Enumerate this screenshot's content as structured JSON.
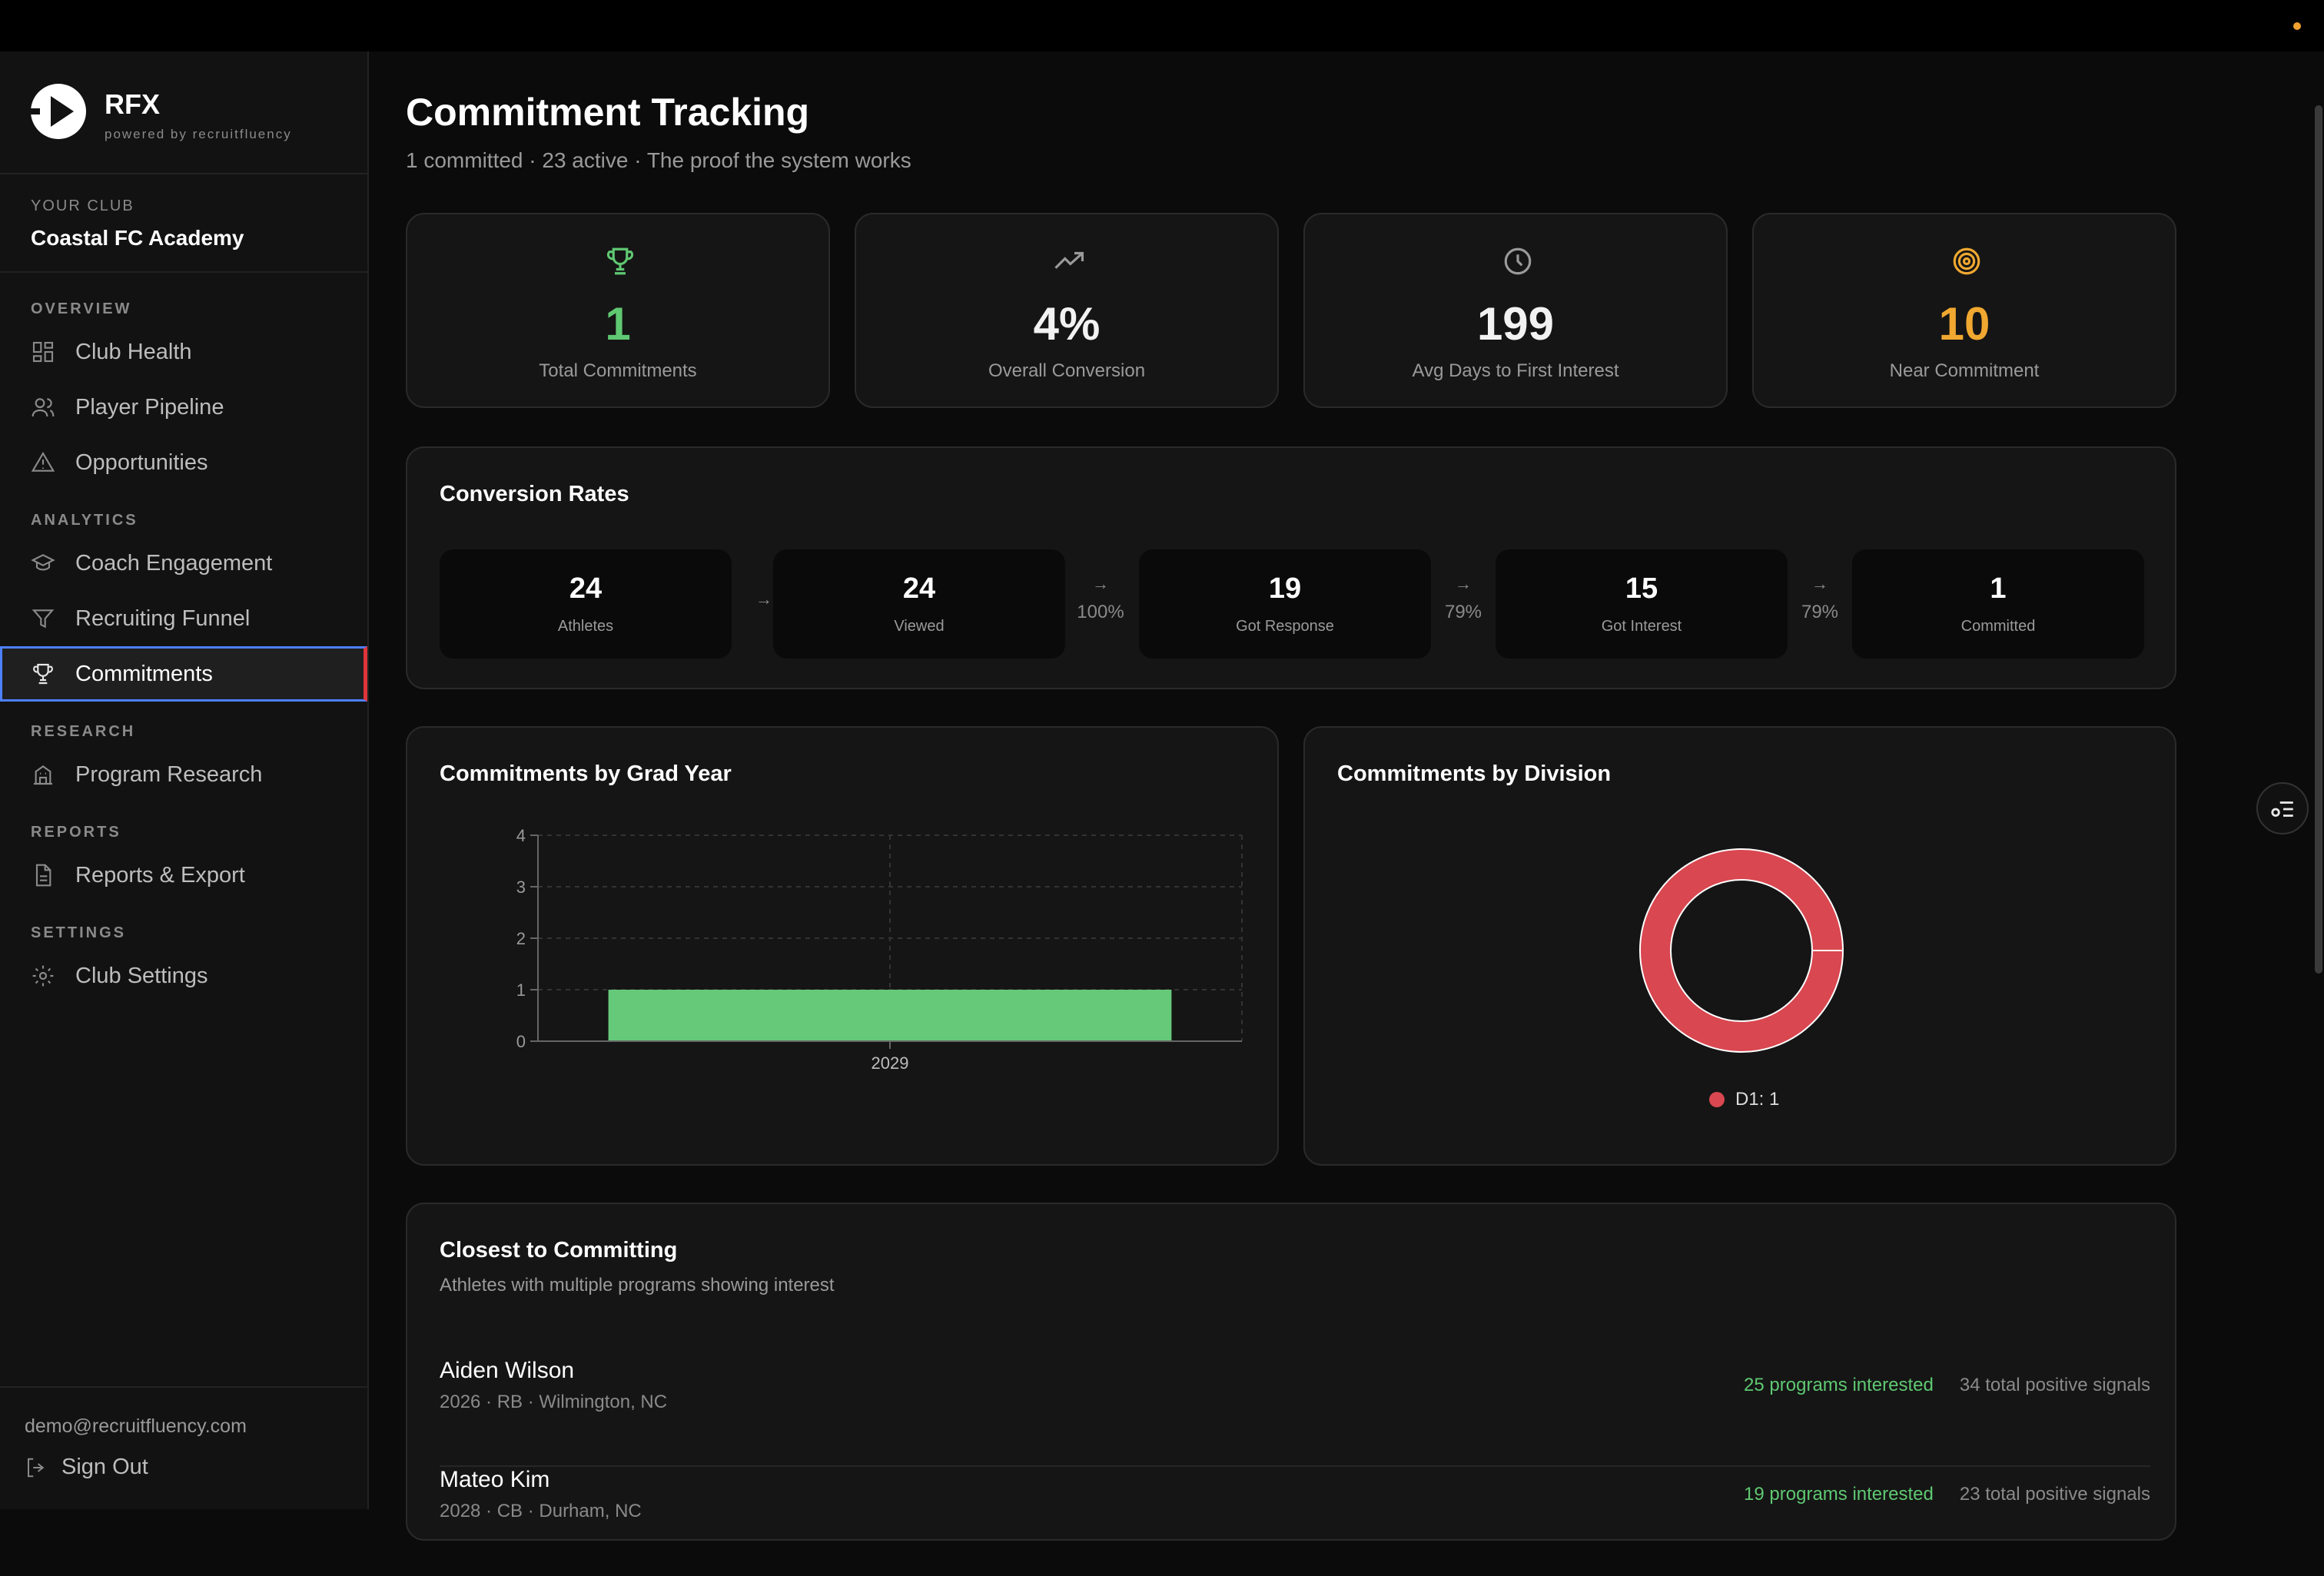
{
  "brand": {
    "name": "RFX",
    "sub": "powered by recruitfluency"
  },
  "club": {
    "label": "YOUR CLUB",
    "name": "Coastal FC Academy"
  },
  "nav": {
    "overview": {
      "label": "OVERVIEW",
      "items": [
        "Club Health",
        "Player Pipeline",
        "Opportunities"
      ]
    },
    "analytics": {
      "label": "ANALYTICS",
      "items": [
        "Coach Engagement",
        "Recruiting Funnel",
        "Commitments"
      ]
    },
    "research": {
      "label": "RESEARCH",
      "items": [
        "Program Research"
      ]
    },
    "reports": {
      "label": "REPORTS",
      "items": [
        "Reports & Export"
      ]
    },
    "settings": {
      "label": "SETTINGS",
      "items": [
        "Club Settings"
      ]
    },
    "active": "Commitments"
  },
  "footer": {
    "email": "demo@recruitfluency.com",
    "signout": "Sign Out"
  },
  "page": {
    "title": "Commitment Tracking",
    "subtitle": "1 committed · 23 active · The proof the system works"
  },
  "stats": [
    {
      "value": "1",
      "label": "Total Commitments",
      "icon": "trophy-icon",
      "color": "#5fc872"
    },
    {
      "value": "4%",
      "label": "Overall Conversion",
      "icon": "trending-up-icon",
      "color": "#ffffff"
    },
    {
      "value": "199",
      "label": "Avg Days to First Interest",
      "icon": "clock-icon",
      "color": "#ffffff"
    },
    {
      "value": "10",
      "label": "Near Commitment",
      "icon": "target-icon",
      "color": "#f0a830"
    }
  ],
  "conversion": {
    "title": "Conversion Rates",
    "stages": [
      {
        "value": "24",
        "label": "Athletes"
      },
      {
        "value": "24",
        "label": "Viewed"
      },
      {
        "value": "19",
        "label": "Got Response"
      },
      {
        "value": "15",
        "label": "Got Interest"
      },
      {
        "value": "1",
        "label": "Committed"
      }
    ],
    "rates": [
      "",
      "100%",
      "79%",
      "79%"
    ]
  },
  "grad_chart": {
    "title": "Commitments by Grad Year"
  },
  "division_chart": {
    "title": "Commitments by Division",
    "legend": "D1: 1"
  },
  "chart_data": [
    {
      "type": "bar",
      "title": "Commitments by Grad Year",
      "categories": [
        "2029"
      ],
      "values": [
        1
      ],
      "ylim": [
        0,
        4
      ],
      "yticks": [
        0,
        1,
        2,
        3,
        4
      ],
      "grid": true,
      "color": "#66c97a"
    },
    {
      "type": "pie",
      "title": "Commitments by Division",
      "labels": [
        "D1"
      ],
      "values": [
        1
      ],
      "colors": [
        "#d94750"
      ],
      "legend": "bottom"
    }
  ],
  "closest": {
    "title": "Closest to Committing",
    "subtitle": "Athletes with multiple programs showing interest",
    "athletes": [
      {
        "name": "Aiden Wilson",
        "meta": "2026 · RB · Wilmington, NC",
        "programs": "25 programs interested",
        "signals": "34 total positive signals"
      },
      {
        "name": "Mateo Kim",
        "meta": "2028 · CB · Durham, NC",
        "programs": "19 programs interested",
        "signals": "23 total positive signals"
      }
    ]
  }
}
